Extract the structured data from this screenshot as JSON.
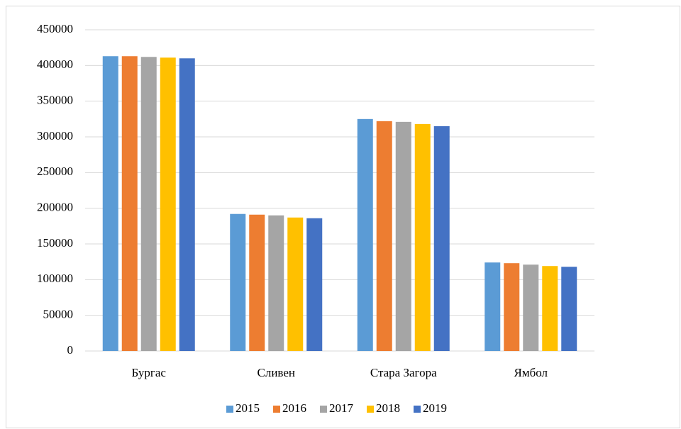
{
  "chart_data": {
    "type": "bar",
    "categories": [
      "Бургас",
      "Сливен",
      "Стара Загора",
      "Ямбол"
    ],
    "series": [
      {
        "name": "2015",
        "color": "#5b9bd5",
        "values": [
          413000,
          192000,
          325000,
          124000
        ]
      },
      {
        "name": "2016",
        "color": "#ed7d31",
        "values": [
          413000,
          191000,
          322000,
          123000
        ]
      },
      {
        "name": "2017",
        "color": "#a5a5a5",
        "values": [
          412000,
          190000,
          321000,
          121000
        ]
      },
      {
        "name": "2018",
        "color": "#ffc000",
        "values": [
          411000,
          187000,
          318000,
          119000
        ]
      },
      {
        "name": "2019",
        "color": "#4472c4",
        "values": [
          410000,
          186000,
          315000,
          118000
        ]
      }
    ],
    "ylim": [
      0,
      450000
    ],
    "yticks": [
      0,
      50000,
      100000,
      150000,
      200000,
      250000,
      300000,
      350000,
      400000,
      450000
    ],
    "grid": true,
    "legend": "bottom"
  }
}
